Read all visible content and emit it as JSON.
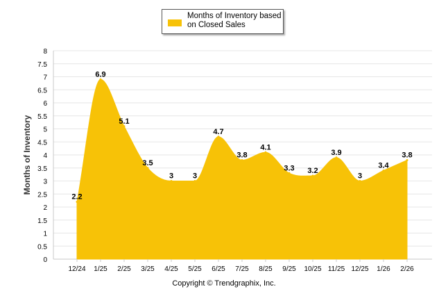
{
  "legend": {
    "label_line1": "Months of Inventory based",
    "label_line2": "on Closed Sales",
    "color": "#f7c207"
  },
  "footer": {
    "copyright": "Copyright © Trendgraphix, Inc."
  },
  "chart_data": {
    "type": "area",
    "title": "",
    "xlabel": "",
    "ylabel": "Months of Inventory",
    "ylim": [
      0,
      8
    ],
    "y_tick_step": 0.5,
    "categories": [
      "12/24",
      "1/25",
      "2/25",
      "3/25",
      "4/25",
      "5/25",
      "6/25",
      "7/25",
      "8/25",
      "9/25",
      "10/25",
      "11/25",
      "12/25",
      "1/26",
      "2/26"
    ],
    "series": [
      {
        "name": "Months of Inventory based on Closed Sales",
        "color": "#f7c207",
        "values": [
          2.2,
          6.9,
          5.1,
          3.5,
          3,
          3,
          4.7,
          3.8,
          4.1,
          3.3,
          3.2,
          3.9,
          3,
          3.4,
          3.8
        ],
        "labels": [
          "2.2",
          "6.9",
          "5.1",
          "3.5",
          "3",
          "3",
          "4.7",
          "3.8",
          "4.1",
          "3.3",
          "3.2",
          "3.9",
          "3",
          "3.4",
          "3.8"
        ]
      }
    ],
    "grid": true,
    "legend_position": "top-center"
  }
}
